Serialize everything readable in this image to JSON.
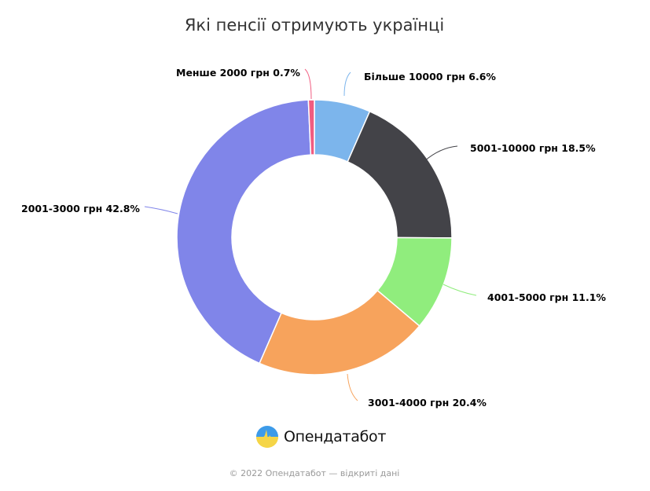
{
  "title": "Які пенсії отримують українці",
  "chart_data": {
    "type": "pie",
    "subtype": "donut",
    "title": "Які пенсії отримують українці",
    "categories": [
      "Більше 10000 грн",
      "5001-10000 грн",
      "4001-5000 грн",
      "3001-4000 грн",
      "2001-3000 грн",
      "Менше 2000 грн"
    ],
    "values": [
      6.6,
      18.5,
      11.1,
      20.4,
      42.8,
      0.7
    ],
    "unit": "%",
    "colors": [
      "#7cb5ec",
      "#434348",
      "#90ed7d",
      "#f7a35c",
      "#8085e9",
      "#f15c80"
    ],
    "start_angle": "12 o'clock, clockwise",
    "legend": "none (data labels with connectors)"
  },
  "labels": [
    {
      "text": "Більше 10000 грн 6.6%"
    },
    {
      "text": "5001-10000 грн 18.5%"
    },
    {
      "text": "4001-5000 грн 11.1%"
    },
    {
      "text": "3001-4000 грн 20.4%"
    },
    {
      "text": "2001-3000 грн 42.8%"
    },
    {
      "text": "Менше 2000 грн 0.7%"
    }
  ],
  "brand": {
    "name": "Опендатабот"
  },
  "footer": {
    "text": "© 2022 Опендатабот — відкриті дані"
  }
}
